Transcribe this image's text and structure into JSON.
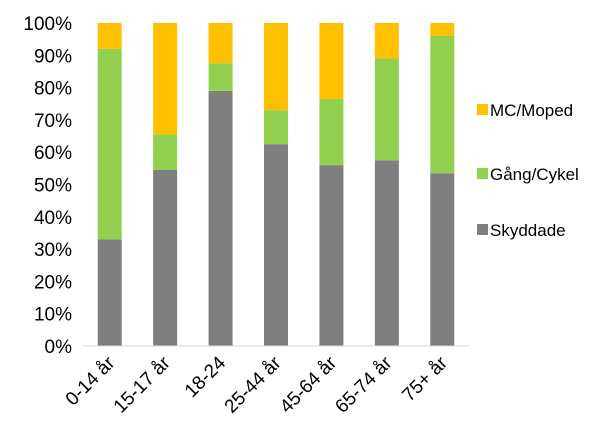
{
  "chart_data": {
    "type": "bar",
    "stacked": true,
    "categories": [
      "0-14 år",
      "15-17 år",
      "18-24",
      "25-44 år",
      "45-64 år",
      "65-74 år",
      "75+ år"
    ],
    "series": [
      {
        "name": "Skyddade",
        "color": "#7f7f7f",
        "values": [
          33,
          54.5,
          79,
          62.5,
          56,
          57.5,
          53.5
        ]
      },
      {
        "name": "Gång/Cykel",
        "color": "#92d050",
        "values": [
          59,
          11,
          8.5,
          10.5,
          20.5,
          31.5,
          42.5
        ]
      },
      {
        "name": "MC/Moped",
        "color": "#ffc000",
        "values": [
          8,
          34.5,
          12.5,
          27,
          23.5,
          11,
          4
        ]
      }
    ],
    "ylim": [
      0,
      100
    ],
    "yticks": [
      "0%",
      "10%",
      "20%",
      "30%",
      "40%",
      "50%",
      "60%",
      "70%",
      "80%",
      "90%",
      "100%"
    ],
    "legend_position": "right",
    "legend_order": [
      "MC/Moped",
      "Gång/Cykel",
      "Skyddade"
    ],
    "grid": false
  }
}
